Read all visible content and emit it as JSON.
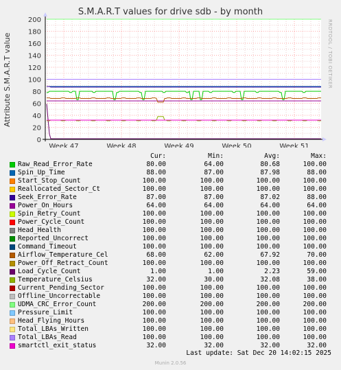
{
  "chart_data": {
    "type": "line",
    "title": "S.M.A.R.T values for drive sdb - by month",
    "ylabel": "Attribute S.M.A.R.T value",
    "ylim": [
      0,
      200
    ],
    "yticks": [
      0,
      20,
      40,
      60,
      80,
      100,
      120,
      140,
      160,
      180,
      200
    ],
    "xticks": [
      "Week 47",
      "Week 48",
      "Week 49",
      "Week 50",
      "Week 51"
    ],
    "grid": true,
    "series": [
      {
        "name": "Raw_Read_Error_Rate",
        "color": "#00cc00",
        "cur": "80.00",
        "min": "64.00",
        "avg": "80.68",
        "max": "100.00"
      },
      {
        "name": "Spin_Up_Time",
        "color": "#0066b3",
        "cur": "88.00",
        "min": "87.00",
        "avg": "87.98",
        "max": "88.00"
      },
      {
        "name": "Start_Stop_Count",
        "color": "#ff8000",
        "cur": "100.00",
        "min": "100.00",
        "avg": "100.00",
        "max": "100.00"
      },
      {
        "name": "Reallocated_Sector_Ct",
        "color": "#ffcc00",
        "cur": "100.00",
        "min": "100.00",
        "avg": "100.00",
        "max": "100.00"
      },
      {
        "name": "Seek_Error_Rate",
        "color": "#330099",
        "cur": "87.00",
        "min": "87.00",
        "avg": "87.02",
        "max": "88.00"
      },
      {
        "name": "Power_On_Hours",
        "color": "#990099",
        "cur": "64.00",
        "min": "64.00",
        "avg": "64.00",
        "max": "64.00"
      },
      {
        "name": "Spin_Retry_Count",
        "color": "#ccff00",
        "cur": "100.00",
        "min": "100.00",
        "avg": "100.00",
        "max": "100.00"
      },
      {
        "name": "Power_Cycle_Count",
        "color": "#ff0000",
        "cur": "100.00",
        "min": "100.00",
        "avg": "100.00",
        "max": "100.00"
      },
      {
        "name": "Head_Health",
        "color": "#808080",
        "cur": "100.00",
        "min": "100.00",
        "avg": "100.00",
        "max": "100.00"
      },
      {
        "name": "Reported_Uncorrect",
        "color": "#008f00",
        "cur": "100.00",
        "min": "100.00",
        "avg": "100.00",
        "max": "100.00"
      },
      {
        "name": "Command_Timeout",
        "color": "#00487d",
        "cur": "100.00",
        "min": "100.00",
        "avg": "100.00",
        "max": "100.00"
      },
      {
        "name": "Airflow_Temperature_Cel",
        "color": "#b35a00",
        "cur": "68.00",
        "min": "62.00",
        "avg": "67.92",
        "max": "70.00"
      },
      {
        "name": "Power_Off_Retract_Count",
        "color": "#b38f00",
        "cur": "100.00",
        "min": "100.00",
        "avg": "100.00",
        "max": "100.00"
      },
      {
        "name": "Load_Cycle_Count",
        "color": "#6b006b",
        "cur": "1.00",
        "min": "1.00",
        "avg": "2.23",
        "max": "59.00"
      },
      {
        "name": "Temperature_Celsius",
        "color": "#8fb300",
        "cur": "32.00",
        "min": "30.00",
        "avg": "32.08",
        "max": "38.00"
      },
      {
        "name": "Current_Pending_Sector",
        "color": "#b30000",
        "cur": "100.00",
        "min": "100.00",
        "avg": "100.00",
        "max": "100.00"
      },
      {
        "name": "Offline_Uncorrectable",
        "color": "#bebebe",
        "cur": "100.00",
        "min": "100.00",
        "avg": "100.00",
        "max": "100.00"
      },
      {
        "name": "UDMA_CRC_Error_Count",
        "color": "#80ff80",
        "cur": "200.00",
        "min": "200.00",
        "avg": "200.00",
        "max": "200.00"
      },
      {
        "name": "Pressure_Limit",
        "color": "#80c9ff",
        "cur": "100.00",
        "min": "100.00",
        "avg": "100.00",
        "max": "100.00"
      },
      {
        "name": "Head_Flying_Hours",
        "color": "#ffc080",
        "cur": "100.00",
        "min": "100.00",
        "avg": "100.00",
        "max": "100.00"
      },
      {
        "name": "Total_LBAs_Written",
        "color": "#ffe680",
        "cur": "100.00",
        "min": "100.00",
        "avg": "100.00",
        "max": "100.00"
      },
      {
        "name": "Total_LBAs_Read",
        "color": "#aa80ff",
        "cur": "100.00",
        "min": "100.00",
        "avg": "100.00",
        "max": "100.00"
      },
      {
        "name": "smartctl_exit_status",
        "color": "#ee00cc",
        "cur": "32.00",
        "min": "32.00",
        "avg": "32.00",
        "max": "32.00"
      }
    ]
  },
  "legend_headers": {
    "cur": "Cur:",
    "min": "Min:",
    "avg": "Avg:",
    "max": "Max:"
  },
  "footer": {
    "last_update": "Last update: Sat Dec 20 14:02:15 2025"
  },
  "watermark": "RRDTOOL / TOBI OETIKER",
  "generator": "Munin 2.0.56"
}
